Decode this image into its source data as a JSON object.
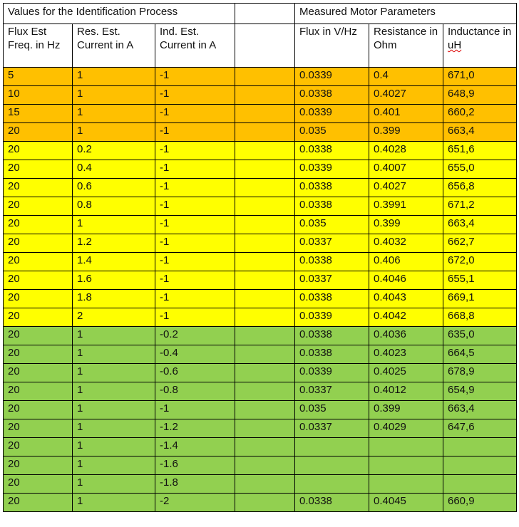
{
  "colors": {
    "orange": "#FFC000",
    "yellow": "#FFFF00",
    "green": "#92D050"
  },
  "header": {
    "group_left": "Values for the Identification Process",
    "group_right": "Measured Motor Parameters",
    "columns": [
      "Flux Est Freq. in Hz",
      "Res. Est. Current in A",
      "Ind. Est. Current in A",
      "",
      "Flux in V/Hz",
      "Resistance in Ohm",
      "Inductance in uH"
    ]
  },
  "rows": [
    {
      "color": "orange",
      "cells": [
        "5",
        "1",
        "-1",
        "",
        "0.0339",
        "0.4",
        "671,0"
      ]
    },
    {
      "color": "orange",
      "cells": [
        "10",
        "1",
        "-1",
        "",
        "0.0338",
        "0.4027",
        "648,9"
      ]
    },
    {
      "color": "orange",
      "cells": [
        "15",
        "1",
        "-1",
        "",
        "0.0339",
        "0.401",
        "660,2"
      ]
    },
    {
      "color": "orange",
      "cells": [
        "20",
        "1",
        "-1",
        "",
        "0.035",
        "0.399",
        "663,4"
      ]
    },
    {
      "color": "yellow",
      "cells": [
        "20",
        "0.2",
        "-1",
        "",
        "0.0338",
        "0.4028",
        "651,6"
      ]
    },
    {
      "color": "yellow",
      "cells": [
        "20",
        "0.4",
        "-1",
        "",
        "0.0339",
        "0.4007",
        "655,0"
      ]
    },
    {
      "color": "yellow",
      "cells": [
        "20",
        "0.6",
        "-1",
        "",
        "0.0338",
        "0.4027",
        "656,8"
      ]
    },
    {
      "color": "yellow",
      "cells": [
        "20",
        "0.8",
        "-1",
        "",
        "0.0338",
        "0.3991",
        "671,2"
      ]
    },
    {
      "color": "yellow",
      "cells": [
        "20",
        "1",
        "-1",
        "",
        "0.035",
        "0.399",
        "663,4"
      ]
    },
    {
      "color": "yellow",
      "cells": [
        "20",
        "1.2",
        "-1",
        "",
        "0.0337",
        "0.4032",
        "662,7"
      ]
    },
    {
      "color": "yellow",
      "cells": [
        "20",
        "1.4",
        "-1",
        "",
        "0.0338",
        "0.406",
        "672,0"
      ]
    },
    {
      "color": "yellow",
      "cells": [
        "20",
        "1.6",
        "-1",
        "",
        "0.0337",
        "0.4046",
        "655,1"
      ]
    },
    {
      "color": "yellow",
      "cells": [
        "20",
        "1.8",
        "-1",
        "",
        "0.0338",
        "0.4043",
        "669,1"
      ]
    },
    {
      "color": "yellow",
      "cells": [
        "20",
        "2",
        "-1",
        "",
        "0.0339",
        "0.4042",
        "668,8"
      ]
    },
    {
      "color": "green",
      "cells": [
        "20",
        "1",
        "-0.2",
        "",
        "0.0338",
        "0.4036",
        "635,0"
      ]
    },
    {
      "color": "green",
      "cells": [
        "20",
        "1",
        "-0.4",
        "",
        "0.0338",
        "0.4023",
        "664,5"
      ]
    },
    {
      "color": "green",
      "cells": [
        "20",
        "1",
        "-0.6",
        "",
        "0.0339",
        "0.4025",
        "678,9"
      ]
    },
    {
      "color": "green",
      "cells": [
        "20",
        "1",
        "-0.8",
        "",
        "0.0337",
        "0.4012",
        "654,9"
      ]
    },
    {
      "color": "green",
      "cells": [
        "20",
        "1",
        "-1",
        "",
        "0.035",
        "0.399",
        "663,4"
      ]
    },
    {
      "color": "green",
      "cells": [
        "20",
        "1",
        "-1.2",
        "",
        "0.0337",
        "0.4029",
        "647,6"
      ]
    },
    {
      "color": "green",
      "cells": [
        "20",
        "1",
        "-1.4",
        "",
        "",
        "",
        ""
      ]
    },
    {
      "color": "green",
      "cells": [
        "20",
        "1",
        "-1.6",
        "",
        "",
        "",
        ""
      ]
    },
    {
      "color": "green",
      "cells": [
        "20",
        "1",
        "-1.8",
        "",
        "",
        "",
        ""
      ]
    },
    {
      "color": "green",
      "cells": [
        "20",
        "1",
        "-2",
        "",
        "0.0338",
        "0.4045",
        "660,9"
      ]
    }
  ]
}
